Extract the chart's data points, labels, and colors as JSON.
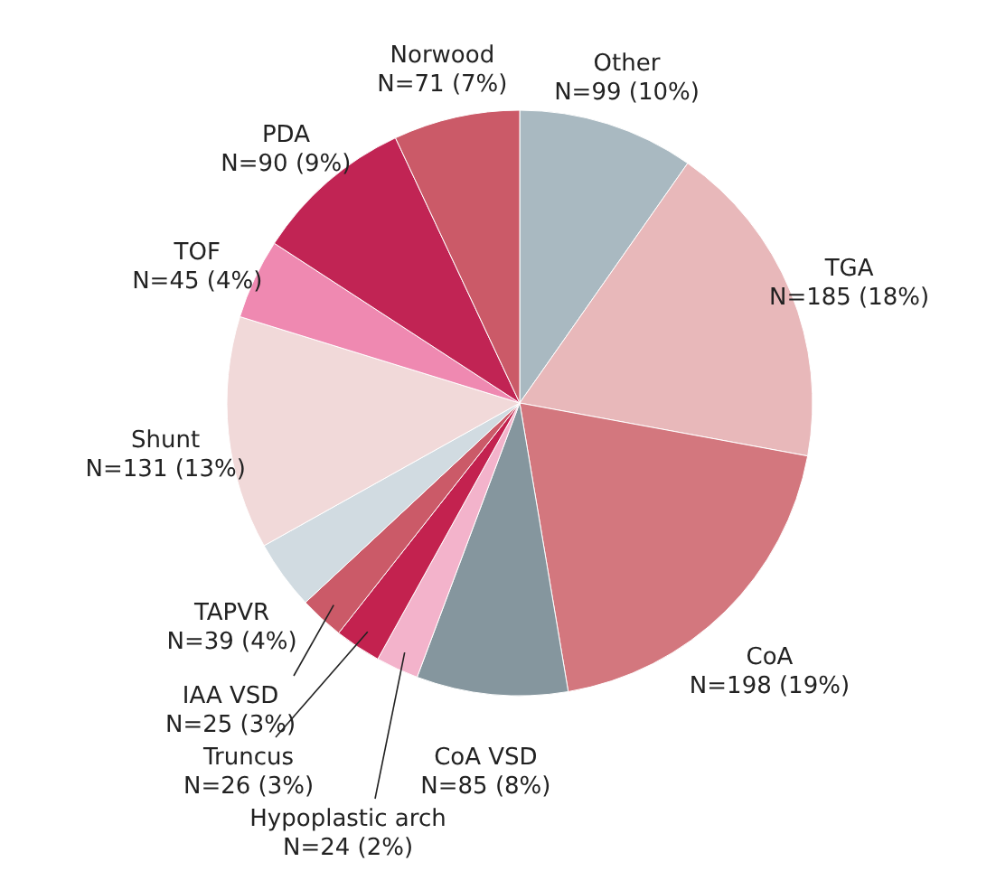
{
  "chart_data": {
    "type": "pie",
    "categories": [
      "Other",
      "TGA",
      "CoA",
      "CoA VSD",
      "Hypoplastic arch",
      "Truncus",
      "IAA VSD",
      "TAPVR",
      "Shunt",
      "TOF",
      "PDA",
      "Norwood"
    ],
    "values": [
      99,
      185,
      198,
      85,
      24,
      26,
      25,
      39,
      131,
      45,
      90,
      71
    ],
    "value_labels": [
      "N=99 (10%)",
      "N=185 (18%)",
      "N=198 (19%)",
      "N=85 (8%)",
      "N=24 (2%)",
      "N=26 (3%)",
      "N=25 (3%)",
      "N=39 (4%)",
      "N=131 (13%)",
      "N=45 (4%)",
      "N=90 (9%)",
      "N=71 (7%)"
    ],
    "colors": [
      "#a9b9c1",
      "#e8b8ba",
      "#d3777e",
      "#85969e",
      "#f3b3cb",
      "#c3224f",
      "#cb5a68",
      "#d1dbe1",
      "#f1d9d9",
      "#ef89b1",
      "#c12454",
      "#cb5a68"
    ]
  }
}
